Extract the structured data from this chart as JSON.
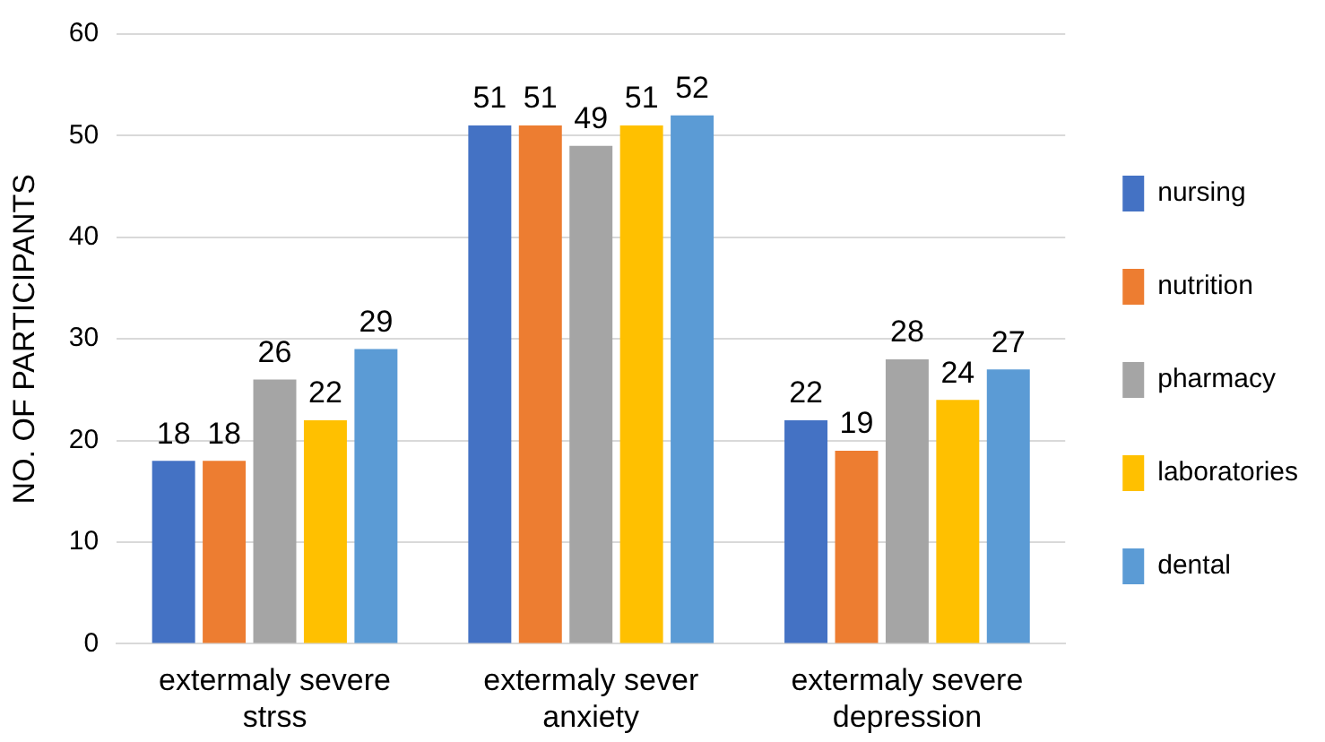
{
  "chart_data": {
    "type": "bar",
    "ylabel": "NO. OF PARTICIPANTS",
    "categories": [
      "extermaly severe strss",
      "extermaly sever anxiety",
      "extermaly severe depression"
    ],
    "series": [
      {
        "name": "nursing",
        "color": "#4472c4",
        "values": [
          18,
          51,
          22
        ]
      },
      {
        "name": "nutrition",
        "color": "#ed7d31",
        "values": [
          18,
          51,
          19
        ]
      },
      {
        "name": "pharmacy",
        "color": "#a5a5a5",
        "values": [
          26,
          49,
          28
        ]
      },
      {
        "name": "laboratories",
        "color": "#ffc000",
        "values": [
          22,
          51,
          24
        ]
      },
      {
        "name": "dental",
        "color": "#5b9bd5",
        "values": [
          29,
          52,
          27
        ]
      }
    ],
    "ylim": [
      0,
      60
    ],
    "yticks": [
      0,
      10,
      20,
      30,
      40,
      50,
      60
    ],
    "grid": "y",
    "legend": "right",
    "data_labels": true
  }
}
